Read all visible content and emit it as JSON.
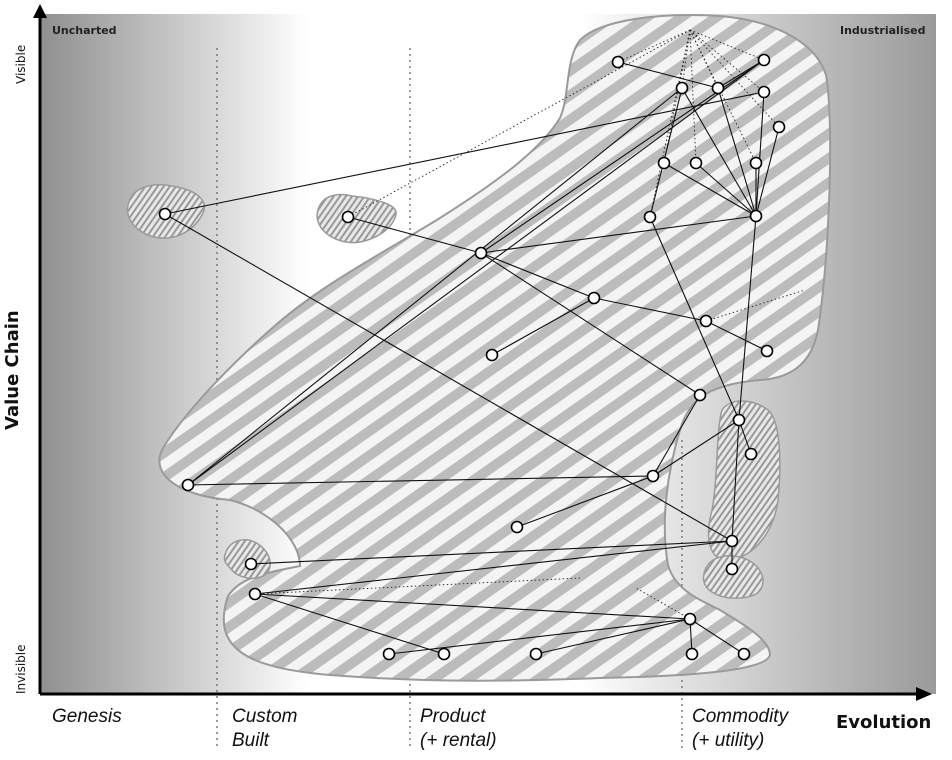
{
  "map": {
    "corner_labels": {
      "left": "Uncharted",
      "right": "Industrialised"
    },
    "y_axis": {
      "title": "Value Chain",
      "top": "Visible",
      "bottom": "Invisible"
    },
    "x_axis": {
      "title": "Evolution",
      "stages": [
        {
          "line1": "Genesis",
          "line2": ""
        },
        {
          "line1": "Custom",
          "line2": "Built"
        },
        {
          "line1": "Product",
          "line2": "(+ rental)"
        },
        {
          "line1": "Commodity",
          "line2": "(+ utility)"
        }
      ]
    },
    "colors": {
      "background_left": "#8c8c8c",
      "background_mid": "#ffffff",
      "background_right": "#9a9a9a",
      "stripe": "#bdbdbd",
      "region_edge": "#9a9a9a"
    }
  }
}
